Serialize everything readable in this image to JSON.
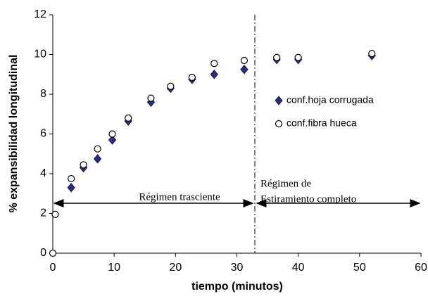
{
  "chart_data": {
    "type": "scatter",
    "xlabel": "tiempo (minutos)",
    "ylabel": "% expansibilidad longitudinal",
    "xlim": [
      0,
      60
    ],
    "xticks": [
      0,
      10,
      20,
      30,
      40,
      50,
      60
    ],
    "ylim": [
      0,
      12
    ],
    "yticks": [
      0,
      2,
      4,
      6,
      8,
      10,
      12
    ],
    "grid": false,
    "legend": "right",
    "annotations": [
      "Régimen trasciente",
      "Régimen de",
      "Estiramiento completo"
    ],
    "series": [
      {
        "name": "conf.hoja corrugada",
        "color": "#2b2b80",
        "marker": "diamond",
        "x": [
          3,
          5,
          7.3,
          9.7,
          12.3,
          16,
          19.2,
          22.7,
          26.3,
          31.2,
          36.5,
          40,
          52
        ],
        "values": [
          3.3,
          4.3,
          4.75,
          5.7,
          6.65,
          7.6,
          8.3,
          8.75,
          9.0,
          9.25,
          9.75,
          9.75,
          9.95
        ]
      },
      {
        "name": "conf.fibra hueca",
        "color": "#ffffff",
        "marker": "circle",
        "x": [
          0,
          0.4,
          3,
          5,
          7.3,
          9.7,
          12.3,
          16,
          19.2,
          22.7,
          26.3,
          31.2,
          36.5,
          40,
          52
        ],
        "values": [
          0,
          1.95,
          3.75,
          4.45,
          5.25,
          6.0,
          6.8,
          7.8,
          8.4,
          8.85,
          9.55,
          9.7,
          9.85,
          9.85,
          10.05
        ]
      }
    ]
  }
}
